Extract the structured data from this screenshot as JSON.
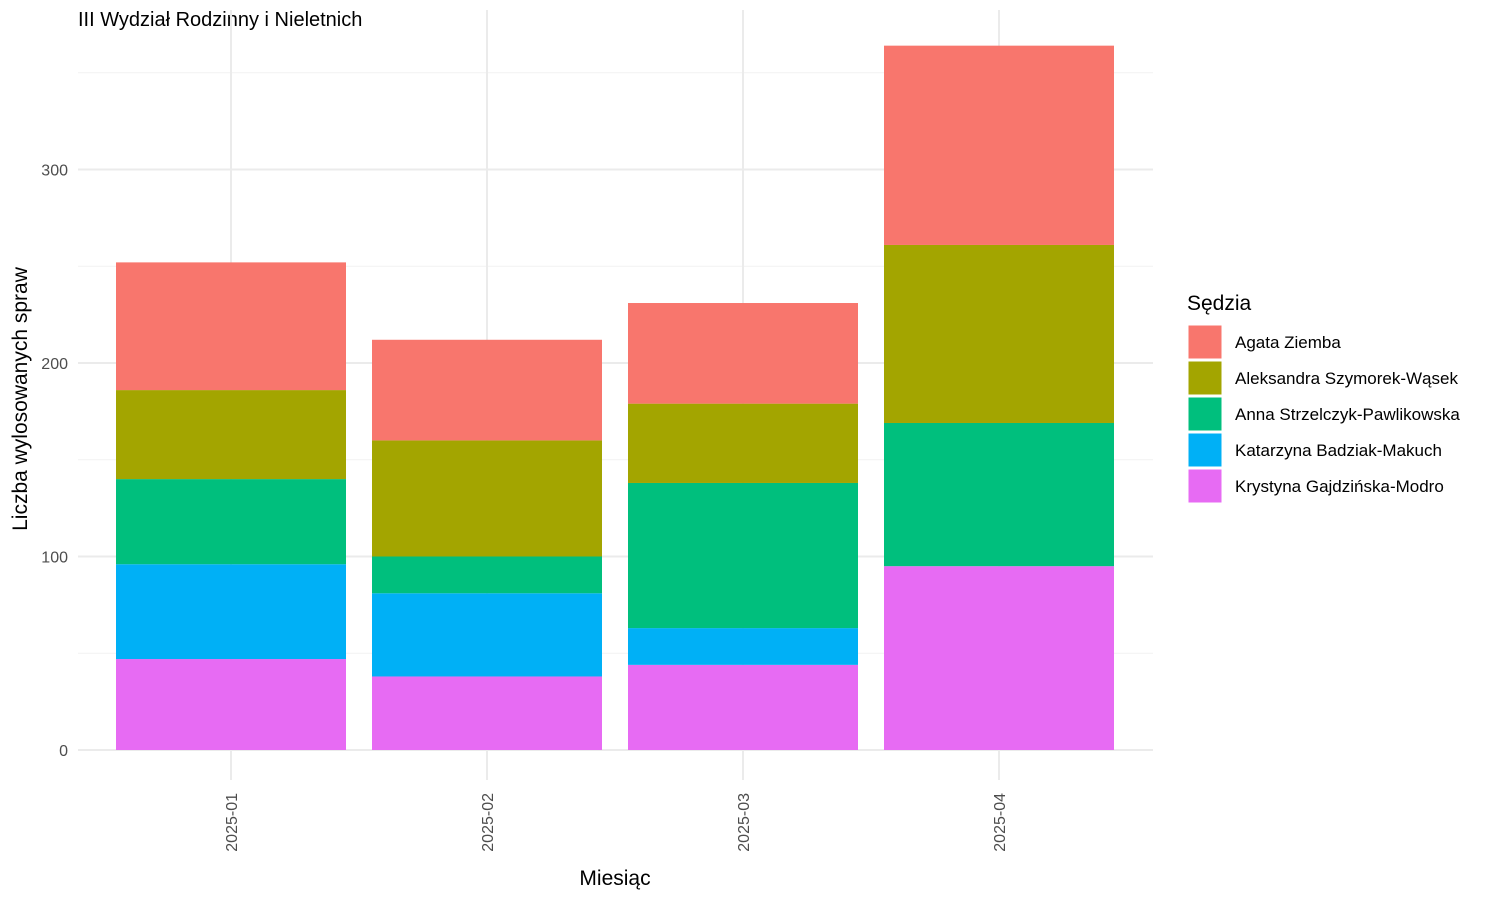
{
  "chart_data": {
    "type": "bar",
    "stacked": true,
    "title": "III Wydział Rodzinny i Nieletnich",
    "xlabel": "Miesiąc",
    "ylabel": "Liczba wylosowanych spraw",
    "categories": [
      "2025-01",
      "2025-02",
      "2025-03",
      "2025-04"
    ],
    "ylim": [
      0,
      380
    ],
    "yticks": [
      0,
      100,
      200,
      300
    ],
    "grid": true,
    "legend": {
      "title": "Sędzia",
      "position": "right"
    },
    "series": [
      {
        "name": "Krystyna Gajdzińska-Modro",
        "color": "#E76BF3",
        "values": [
          47,
          38,
          44,
          95
        ]
      },
      {
        "name": "Katarzyna Badziak-Makuch",
        "color": "#00B0F6",
        "values": [
          49,
          43,
          19,
          0
        ]
      },
      {
        "name": "Anna Strzelczyk-Pawlikowska",
        "color": "#00BF7D",
        "values": [
          44,
          19,
          75,
          74
        ]
      },
      {
        "name": "Aleksandra Szymorek-Wąsek",
        "color": "#A3A500",
        "values": [
          46,
          60,
          41,
          92
        ]
      },
      {
        "name": "Agata Ziemba",
        "color": "#F8766D",
        "values": [
          66,
          52,
          52,
          103
        ]
      }
    ]
  }
}
